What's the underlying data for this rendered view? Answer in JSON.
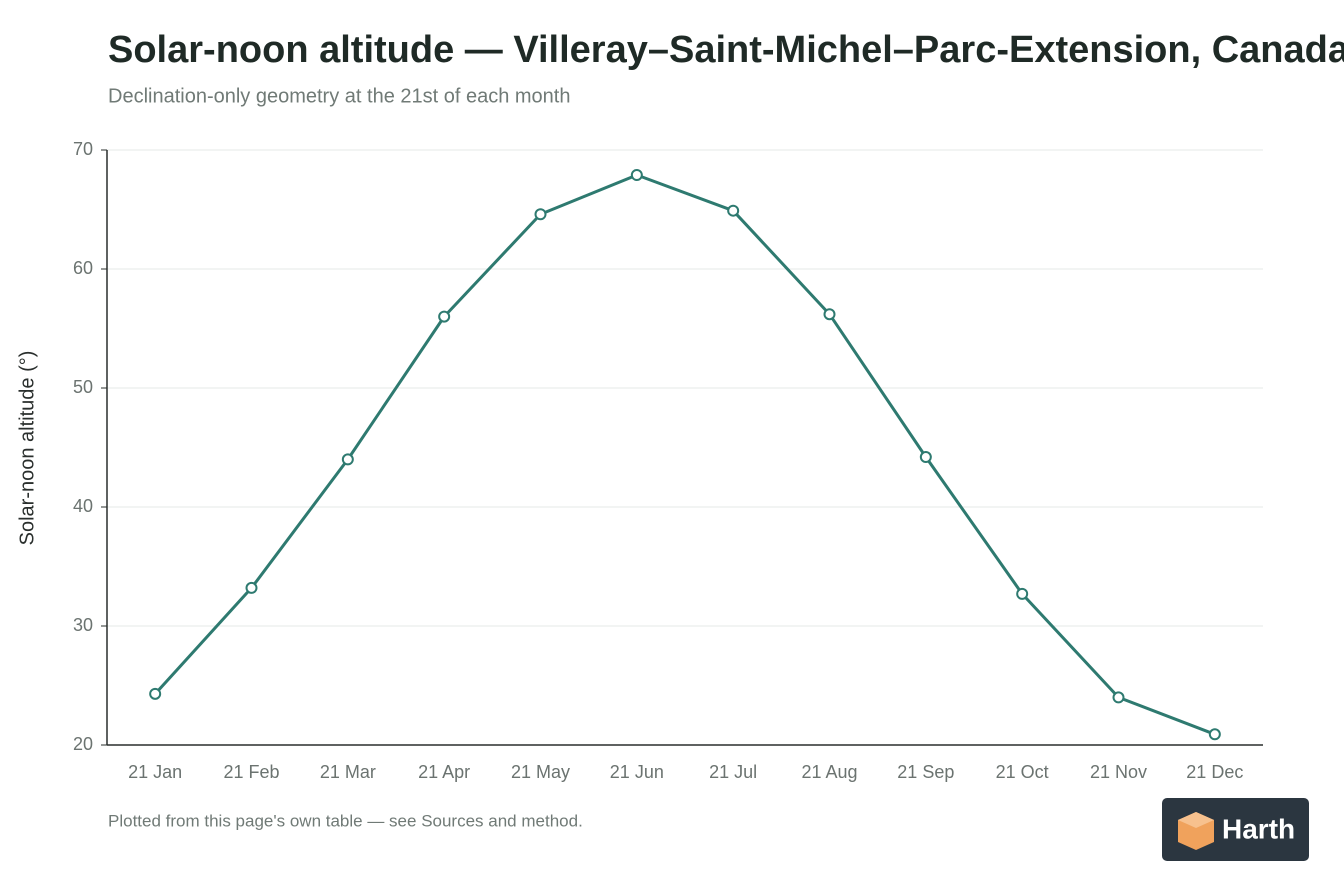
{
  "chart_data": {
    "type": "line",
    "title": "Solar-noon altitude — Villeray–Saint-Michel–Parc-Extension, Canada",
    "subtitle": "Declination-only geometry at the 21st of each month",
    "y_label": "Solar-noon altitude (°)",
    "categories": [
      "21 Jan",
      "21 Feb",
      "21 Mar",
      "21 Apr",
      "21 May",
      "21 Jun",
      "21 Jul",
      "21 Aug",
      "21 Sep",
      "21 Oct",
      "21 Nov",
      "21 Dec"
    ],
    "values": [
      24.3,
      33.2,
      44.0,
      56.0,
      64.6,
      67.9,
      64.9,
      56.2,
      44.2,
      32.7,
      24.0,
      20.9
    ],
    "color": "#2e7a70",
    "ylim": [
      20,
      70
    ],
    "yticks": [
      20,
      30,
      40,
      50,
      60,
      70
    ],
    "grid": true
  },
  "footer": "Plotted from this page's own table — see Sources and method.",
  "logo": "Harth"
}
